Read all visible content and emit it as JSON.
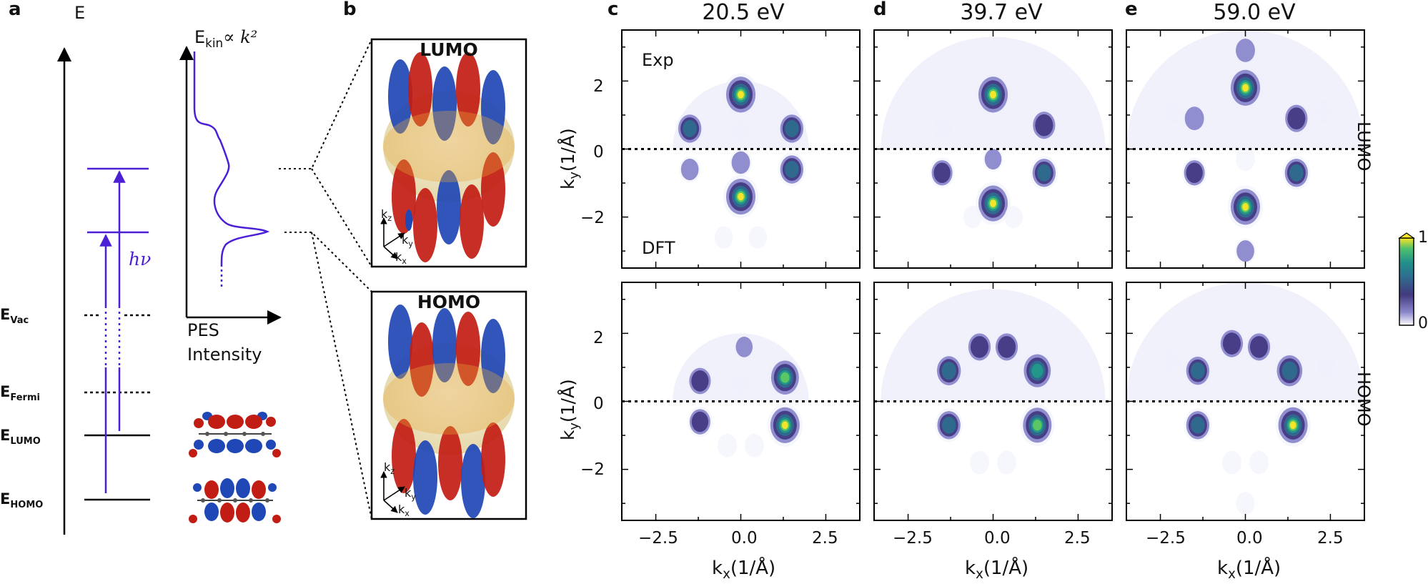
{
  "panel_a": {
    "letter": "a",
    "energy_axis_label": "E",
    "kin_axis_label_main": "E",
    "kin_axis_label_sub": "kin",
    "kin_axis_label_rest": "∝ k²",
    "pes_label_1": "PES",
    "pes_label_2": "Intensity",
    "photon_label": "hν",
    "levels": [
      {
        "main": "E",
        "sub": "Vac",
        "style": "dotted"
      },
      {
        "main": "E",
        "sub": "Fermi",
        "style": "dotted"
      },
      {
        "main": "E",
        "sub": "LUMO",
        "style": "solid"
      },
      {
        "main": "E",
        "sub": "HOMO",
        "style": "solid"
      }
    ],
    "colors": {
      "photon": "#4b1fd6",
      "axis": "#000000",
      "orbital_pos": "#c21d14",
      "orbital_neg": "#1f47b5"
    }
  },
  "panel_b": {
    "letter": "b",
    "orbitals": [
      {
        "title": "LUMO",
        "axes": [
          "k",
          "z",
          "k",
          "y",
          "k",
          "x"
        ]
      },
      {
        "title": "HOMO",
        "axes": [
          "k",
          "z",
          "k",
          "y",
          "k",
          "x"
        ]
      }
    ]
  },
  "maps": {
    "columns": [
      {
        "letter": "c",
        "energy": "20.5 eV"
      },
      {
        "letter": "d",
        "energy": "39.7 eV"
      },
      {
        "letter": "e",
        "energy": "59.0 eV"
      }
    ],
    "rows": [
      "LUMO",
      "HOMO"
    ],
    "exp_label": "Exp",
    "dft_label": "DFT",
    "x_ticks": [
      "−2.5",
      "0.0",
      "2.5"
    ],
    "y_ticks": [
      "2",
      "0",
      "−2"
    ],
    "x_label_main": "k",
    "x_label_sub": "x",
    "x_label_rest": "(1/Å)",
    "y_label_main": "k",
    "y_label_sub": "y",
    "y_label_rest": "(1/Å)",
    "colorbar": {
      "max_label": "1",
      "min_label": "0",
      "colors": [
        "#fde725",
        "#35b779",
        "#21918c",
        "#31688e",
        "#443983",
        "#7f7fc8",
        "#ffffff"
      ]
    }
  },
  "chart_data": [
    {
      "type": "heatmap",
      "title": "20.5 eV",
      "row": "LUMO",
      "xlabel": "kx(1/Å)",
      "ylabel": "ky(1/Å)",
      "xlim": [
        -3.5,
        3.5
      ],
      "ylim": [
        -3.5,
        3.5
      ],
      "exp_cutoff": 2.0,
      "exp": [
        [
          0.0,
          1.6,
          1.0
        ],
        [
          -1.5,
          0.6,
          0.6
        ],
        [
          1.5,
          0.6,
          0.6
        ],
        [
          0.0,
          0.5,
          0.15
        ]
      ],
      "dft": [
        [
          0.0,
          -1.4,
          1.0
        ],
        [
          1.5,
          -0.6,
          0.6
        ],
        [
          -1.5,
          -0.6,
          0.25
        ],
        [
          0.0,
          -0.4,
          0.3
        ],
        [
          -0.5,
          -2.6,
          0.1
        ],
        [
          0.5,
          -2.6,
          0.1
        ]
      ]
    },
    {
      "type": "heatmap",
      "title": "39.7 eV",
      "row": "LUMO",
      "xlabel": "kx(1/Å)",
      "ylabel": "ky(1/Å)",
      "xlim": [
        -3.5,
        3.5
      ],
      "ylim": [
        -3.5,
        3.5
      ],
      "exp_cutoff": 3.3,
      "exp": [
        [
          0.0,
          1.6,
          1.0
        ],
        [
          1.5,
          0.7,
          0.55
        ],
        [
          -1.5,
          0.6,
          0.08
        ]
      ],
      "dft": [
        [
          0.0,
          -1.6,
          1.0
        ],
        [
          1.5,
          -0.7,
          0.6
        ],
        [
          -1.5,
          -0.7,
          0.45
        ],
        [
          0.0,
          -0.3,
          0.2
        ],
        [
          -0.6,
          -2.0,
          0.1
        ],
        [
          0.6,
          -2.0,
          0.1
        ]
      ]
    },
    {
      "type": "heatmap",
      "title": "59.0 eV",
      "row": "LUMO",
      "xlabel": "kx(1/Å)",
      "ylabel": "ky(1/Å)",
      "xlim": [
        -3.5,
        3.5
      ],
      "ylim": [
        -3.5,
        3.5
      ],
      "exp_cutoff": 3.5,
      "exp": [
        [
          0.0,
          1.8,
          1.0
        ],
        [
          1.5,
          0.9,
          0.55
        ],
        [
          -1.5,
          0.9,
          0.35
        ],
        [
          0.0,
          2.9,
          0.35
        ],
        [
          -2.1,
          1.1,
          0.1
        ],
        [
          2.3,
          1.1,
          0.1
        ]
      ],
      "dft": [
        [
          0.0,
          -1.7,
          1.0
        ],
        [
          1.5,
          -0.7,
          0.6
        ],
        [
          -1.5,
          -0.7,
          0.45
        ],
        [
          0.0,
          -3.0,
          0.25
        ],
        [
          0.0,
          -0.3,
          0.15
        ]
      ]
    },
    {
      "type": "heatmap",
      "title": "20.5 eV",
      "row": "HOMO",
      "xlabel": "kx(1/Å)",
      "ylabel": "ky(1/Å)",
      "xlim": [
        -3.5,
        3.5
      ],
      "ylim": [
        -3.5,
        3.5
      ],
      "exp_cutoff": 2.0,
      "exp": [
        [
          1.3,
          0.7,
          0.9
        ],
        [
          -1.2,
          0.6,
          0.5
        ],
        [
          0.1,
          1.6,
          0.2
        ],
        [
          0.0,
          0.5,
          0.1
        ]
      ],
      "dft": [
        [
          1.3,
          -0.7,
          1.0
        ],
        [
          -1.2,
          -0.6,
          0.45
        ],
        [
          0.4,
          -1.3,
          0.15
        ],
        [
          -0.4,
          -1.3,
          0.15
        ]
      ]
    },
    {
      "type": "heatmap",
      "title": "39.7 eV",
      "row": "HOMO",
      "xlabel": "kx(1/Å)",
      "ylabel": "ky(1/Å)",
      "xlim": [
        -3.5,
        3.5
      ],
      "ylim": [
        -3.5,
        3.5
      ],
      "exp_cutoff": 3.3,
      "exp": [
        [
          1.3,
          0.9,
          0.85
        ],
        [
          -1.3,
          0.9,
          0.65
        ],
        [
          -0.4,
          1.6,
          0.55
        ],
        [
          0.4,
          1.6,
          0.55
        ]
      ],
      "dft": [
        [
          1.3,
          -0.7,
          0.95
        ],
        [
          -1.3,
          -0.7,
          0.6
        ],
        [
          0.4,
          -1.8,
          0.15
        ],
        [
          -0.4,
          -1.8,
          0.15
        ]
      ]
    },
    {
      "type": "heatmap",
      "title": "59.0 eV",
      "row": "HOMO",
      "xlabel": "kx(1/Å)",
      "ylabel": "ky(1/Å)",
      "xlim": [
        -3.5,
        3.5
      ],
      "ylim": [
        -3.5,
        3.5
      ],
      "exp_cutoff": 3.5,
      "exp": [
        [
          1.3,
          0.9,
          0.75
        ],
        [
          -1.4,
          0.9,
          0.6
        ],
        [
          -0.4,
          1.7,
          0.55
        ],
        [
          0.4,
          1.6,
          0.55
        ],
        [
          -2.2,
          1.2,
          0.12
        ],
        [
          2.4,
          1.0,
          0.12
        ]
      ],
      "dft": [
        [
          1.4,
          -0.7,
          1.0
        ],
        [
          -1.4,
          -0.7,
          0.6
        ],
        [
          0.4,
          -1.8,
          0.15
        ],
        [
          -0.4,
          -1.8,
          0.15
        ],
        [
          0.0,
          -3.0,
          0.12
        ]
      ]
    }
  ]
}
